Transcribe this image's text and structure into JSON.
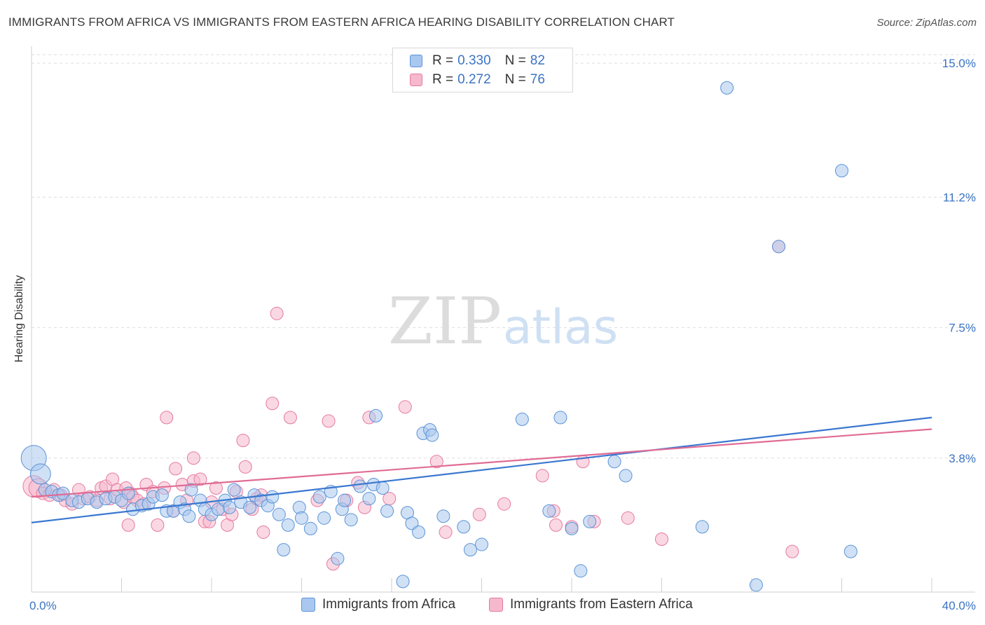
{
  "header": {
    "title": "IMMIGRANTS FROM AFRICA VS IMMIGRANTS FROM EASTERN AFRICA HEARING DISABILITY CORRELATION CHART",
    "source": "Source: ZipAtlas.com"
  },
  "watermark": {
    "zip": "ZIP",
    "atlas": "atlas"
  },
  "colors": {
    "blue_fill": "#a9c8ef",
    "blue_stroke": "#5b93d6",
    "blue_line": "#3a77d0",
    "pink_fill": "#f5b8cc",
    "pink_stroke": "#e57a9f",
    "pink_line": "#e06c94",
    "tick_label": "#3b73c4",
    "grid": "#dddddd"
  },
  "stats": {
    "blue": {
      "r_label": "R =",
      "r_value": "0.330",
      "n_label": "N =",
      "n_value": "82"
    },
    "pink": {
      "r_label": "R =",
      "r_value": "0.272",
      "n_label": "N =",
      "n_value": "76"
    }
  },
  "legend": {
    "blue": "Immigrants from Africa",
    "pink": "Immigrants from Eastern Africa"
  },
  "chart_data": {
    "type": "scatter",
    "ylabel": "Hearing Disability",
    "xlim": [
      0,
      40
    ],
    "ylim": [
      0,
      15.4
    ],
    "x_tick_labels": [
      "0.0%",
      "40.0%"
    ],
    "y_ticks": [
      {
        "value": 3.8,
        "label": "3.8%"
      },
      {
        "value": 7.5,
        "label": "7.5%"
      },
      {
        "value": 11.2,
        "label": "11.2%"
      },
      {
        "value": 15.0,
        "label": "15.0%"
      }
    ],
    "grid": "horizontal-dashed",
    "series": [
      {
        "name": "Immigrants from Africa",
        "color": "blue",
        "trend": {
          "x": [
            0,
            40
          ],
          "y": [
            1.97,
            4.95
          ]
        },
        "points": [
          {
            "x": 0.1,
            "y": 3.8,
            "s": 2
          },
          {
            "x": 0.4,
            "y": 3.35,
            "s": 1.6
          },
          {
            "x": 0.6,
            "y": 2.9
          },
          {
            "x": 0.9,
            "y": 2.85
          },
          {
            "x": 1.2,
            "y": 2.75
          },
          {
            "x": 1.4,
            "y": 2.8
          },
          {
            "x": 1.8,
            "y": 2.6
          },
          {
            "x": 2.1,
            "y": 2.55
          },
          {
            "x": 2.5,
            "y": 2.65
          },
          {
            "x": 2.9,
            "y": 2.55
          },
          {
            "x": 3.3,
            "y": 2.65
          },
          {
            "x": 3.7,
            "y": 2.7
          },
          {
            "x": 4.0,
            "y": 2.6
          },
          {
            "x": 4.3,
            "y": 2.8
          },
          {
            "x": 4.5,
            "y": 2.35
          },
          {
            "x": 4.9,
            "y": 2.45
          },
          {
            "x": 5.2,
            "y": 2.5
          },
          {
            "x": 5.4,
            "y": 2.7
          },
          {
            "x": 5.8,
            "y": 2.75
          },
          {
            "x": 6.0,
            "y": 2.3
          },
          {
            "x": 6.3,
            "y": 2.3
          },
          {
            "x": 6.6,
            "y": 2.55
          },
          {
            "x": 6.8,
            "y": 2.35
          },
          {
            "x": 7.1,
            "y": 2.9
          },
          {
            "x": 7.0,
            "y": 2.15
          },
          {
            "x": 7.5,
            "y": 2.6
          },
          {
            "x": 7.7,
            "y": 2.35
          },
          {
            "x": 8.0,
            "y": 2.2
          },
          {
            "x": 8.3,
            "y": 2.35
          },
          {
            "x": 8.6,
            "y": 2.6
          },
          {
            "x": 8.8,
            "y": 2.4
          },
          {
            "x": 9.0,
            "y": 2.9
          },
          {
            "x": 9.3,
            "y": 2.55
          },
          {
            "x": 9.7,
            "y": 2.4
          },
          {
            "x": 9.9,
            "y": 2.75
          },
          {
            "x": 10.2,
            "y": 2.6
          },
          {
            "x": 10.5,
            "y": 2.45
          },
          {
            "x": 10.7,
            "y": 2.7
          },
          {
            "x": 11.0,
            "y": 2.2
          },
          {
            "x": 11.2,
            "y": 1.2
          },
          {
            "x": 11.4,
            "y": 1.9
          },
          {
            "x": 11.9,
            "y": 2.4
          },
          {
            "x": 12.0,
            "y": 2.1
          },
          {
            "x": 12.4,
            "y": 1.8
          },
          {
            "x": 12.8,
            "y": 2.7
          },
          {
            "x": 13.0,
            "y": 2.1
          },
          {
            "x": 13.3,
            "y": 2.85
          },
          {
            "x": 13.6,
            "y": 0.95
          },
          {
            "x": 13.8,
            "y": 2.35
          },
          {
            "x": 13.9,
            "y": 2.6
          },
          {
            "x": 14.2,
            "y": 2.05
          },
          {
            "x": 14.6,
            "y": 3.0
          },
          {
            "x": 15.0,
            "y": 2.65
          },
          {
            "x": 15.2,
            "y": 3.05
          },
          {
            "x": 15.6,
            "y": 2.95
          },
          {
            "x": 15.3,
            "y": 5.0
          },
          {
            "x": 15.8,
            "y": 2.3
          },
          {
            "x": 16.5,
            "y": 0.3
          },
          {
            "x": 16.7,
            "y": 2.25
          },
          {
            "x": 16.9,
            "y": 1.95
          },
          {
            "x": 17.2,
            "y": 1.7
          },
          {
            "x": 17.4,
            "y": 4.5
          },
          {
            "x": 17.7,
            "y": 4.6
          },
          {
            "x": 17.8,
            "y": 4.45
          },
          {
            "x": 18.3,
            "y": 2.15
          },
          {
            "x": 19.2,
            "y": 1.85
          },
          {
            "x": 19.5,
            "y": 1.2
          },
          {
            "x": 20.0,
            "y": 1.35
          },
          {
            "x": 21.8,
            "y": 4.9
          },
          {
            "x": 23.0,
            "y": 2.3
          },
          {
            "x": 23.5,
            "y": 4.95
          },
          {
            "x": 24.0,
            "y": 1.8
          },
          {
            "x": 24.4,
            "y": 0.6
          },
          {
            "x": 24.8,
            "y": 2.0
          },
          {
            "x": 25.9,
            "y": 3.7
          },
          {
            "x": 26.4,
            "y": 3.3
          },
          {
            "x": 29.8,
            "y": 1.85
          },
          {
            "x": 30.9,
            "y": 14.3
          },
          {
            "x": 32.2,
            "y": 0.2
          },
          {
            "x": 33.2,
            "y": 9.8
          },
          {
            "x": 36.0,
            "y": 11.95
          },
          {
            "x": 36.4,
            "y": 1.15
          }
        ]
      },
      {
        "name": "Immigrants from Eastern Africa",
        "color": "pink",
        "trend": {
          "x": [
            0,
            40
          ],
          "y": [
            2.7,
            4.62
          ]
        },
        "points": [
          {
            "x": 0.1,
            "y": 3.0,
            "s": 1.7
          },
          {
            "x": 0.3,
            "y": 2.95,
            "s": 1.5
          },
          {
            "x": 0.5,
            "y": 2.8
          },
          {
            "x": 0.8,
            "y": 2.75
          },
          {
            "x": 1.0,
            "y": 2.9
          },
          {
            "x": 1.3,
            "y": 2.75
          },
          {
            "x": 1.5,
            "y": 2.6
          },
          {
            "x": 1.8,
            "y": 2.5
          },
          {
            "x": 2.1,
            "y": 2.9
          },
          {
            "x": 2.3,
            "y": 2.65
          },
          {
            "x": 2.6,
            "y": 2.7
          },
          {
            "x": 2.9,
            "y": 2.6
          },
          {
            "x": 3.1,
            "y": 2.95
          },
          {
            "x": 3.3,
            "y": 3.0
          },
          {
            "x": 3.5,
            "y": 2.65
          },
          {
            "x": 3.6,
            "y": 3.2
          },
          {
            "x": 3.8,
            "y": 2.9
          },
          {
            "x": 4.1,
            "y": 2.55
          },
          {
            "x": 4.2,
            "y": 2.95
          },
          {
            "x": 4.4,
            "y": 2.8
          },
          {
            "x": 4.5,
            "y": 2.7
          },
          {
            "x": 4.7,
            "y": 2.6
          },
          {
            "x": 5.0,
            "y": 2.5
          },
          {
            "x": 5.1,
            "y": 3.05
          },
          {
            "x": 4.3,
            "y": 1.9
          },
          {
            "x": 5.4,
            "y": 2.85
          },
          {
            "x": 5.6,
            "y": 1.9
          },
          {
            "x": 5.9,
            "y": 2.95
          },
          {
            "x": 6.0,
            "y": 4.95
          },
          {
            "x": 6.3,
            "y": 2.3
          },
          {
            "x": 6.4,
            "y": 3.5
          },
          {
            "x": 6.7,
            "y": 3.05
          },
          {
            "x": 6.9,
            "y": 2.6
          },
          {
            "x": 7.2,
            "y": 3.15
          },
          {
            "x": 7.2,
            "y": 3.8
          },
          {
            "x": 7.5,
            "y": 3.2
          },
          {
            "x": 7.7,
            "y": 2.0
          },
          {
            "x": 7.9,
            "y": 2.0
          },
          {
            "x": 8.0,
            "y": 2.55
          },
          {
            "x": 8.2,
            "y": 2.95
          },
          {
            "x": 8.5,
            "y": 2.35
          },
          {
            "x": 8.7,
            "y": 1.9
          },
          {
            "x": 8.9,
            "y": 2.2
          },
          {
            "x": 9.1,
            "y": 2.85
          },
          {
            "x": 9.4,
            "y": 4.3
          },
          {
            "x": 9.5,
            "y": 3.55
          },
          {
            "x": 9.8,
            "y": 2.35
          },
          {
            "x": 10.0,
            "y": 2.65
          },
          {
            "x": 10.2,
            "y": 2.75
          },
          {
            "x": 10.3,
            "y": 1.7
          },
          {
            "x": 10.7,
            "y": 5.35
          },
          {
            "x": 10.9,
            "y": 7.9
          },
          {
            "x": 11.5,
            "y": 4.95
          },
          {
            "x": 12.7,
            "y": 2.6
          },
          {
            "x": 13.2,
            "y": 4.85
          },
          {
            "x": 13.4,
            "y": 0.8
          },
          {
            "x": 14.0,
            "y": 2.6
          },
          {
            "x": 14.5,
            "y": 3.1
          },
          {
            "x": 14.8,
            "y": 2.4
          },
          {
            "x": 15.0,
            "y": 4.95
          },
          {
            "x": 15.9,
            "y": 2.65
          },
          {
            "x": 16.6,
            "y": 5.25
          },
          {
            "x": 18.0,
            "y": 3.7
          },
          {
            "x": 18.4,
            "y": 1.7
          },
          {
            "x": 22.7,
            "y": 3.3
          },
          {
            "x": 23.2,
            "y": 2.3
          },
          {
            "x": 23.3,
            "y": 1.9
          },
          {
            "x": 24.0,
            "y": 1.85
          },
          {
            "x": 24.5,
            "y": 3.7
          },
          {
            "x": 33.2,
            "y": 9.8
          },
          {
            "x": 33.8,
            "y": 1.15
          },
          {
            "x": 25.0,
            "y": 2.0
          },
          {
            "x": 19.9,
            "y": 2.2
          },
          {
            "x": 21.0,
            "y": 2.5
          },
          {
            "x": 26.5,
            "y": 2.1
          },
          {
            "x": 28.0,
            "y": 1.5
          }
        ]
      }
    ]
  }
}
